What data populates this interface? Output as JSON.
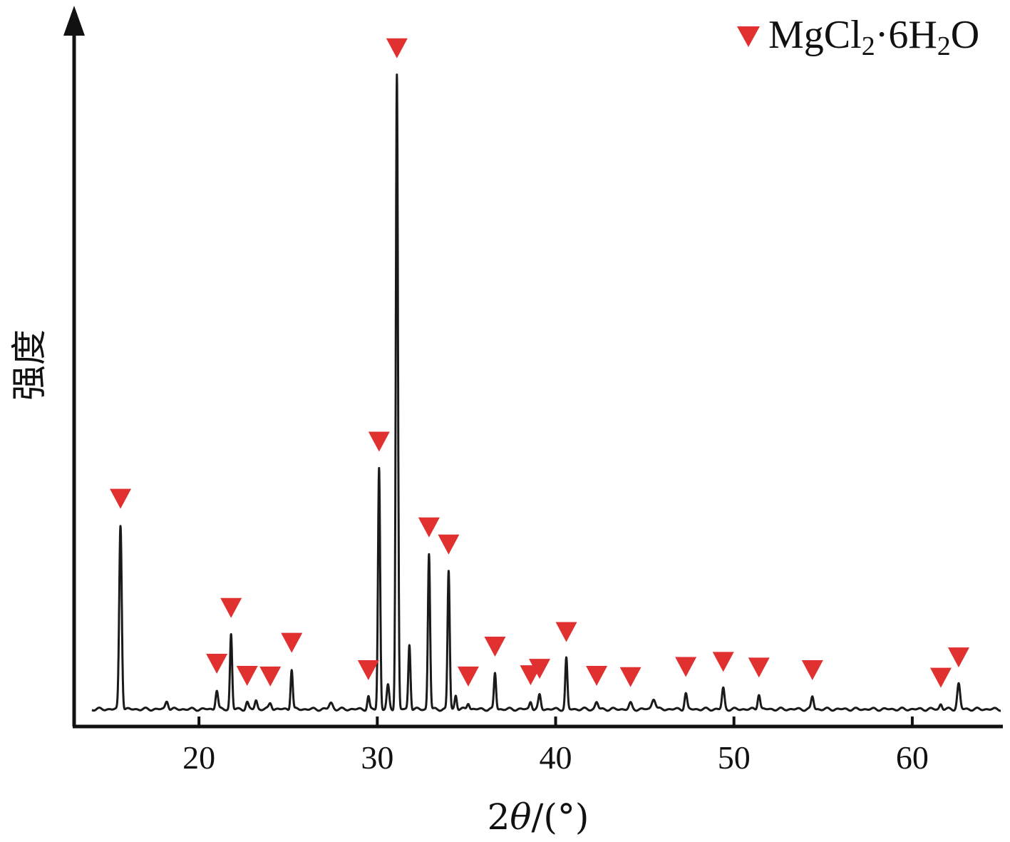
{
  "chart_data": {
    "type": "line",
    "xlabel": "2θ/(°)",
    "xlabel_prefix": "2",
    "xlabel_symbol": "θ",
    "xlabel_suffix": "/(°)",
    "ylabel": "强度",
    "xlim": [
      13,
      65
    ],
    "ylim": [
      0,
      100
    ],
    "xticks": [
      20,
      30,
      40,
      50,
      60
    ],
    "xtick_labels": [
      "20",
      "30",
      "40",
      "50",
      "60"
    ],
    "grid": false,
    "legend": {
      "position": "top-right",
      "entries": [
        {
          "label": "MgCl₂·6H₂O",
          "text_parts": [
            "MgCl",
            "2",
            "·6H",
            "2",
            "O"
          ],
          "marker": "down-triangle",
          "color": "#e03030"
        }
      ]
    },
    "line_color": "#1a1a1a",
    "baseline": 2.5,
    "peaks": [
      {
        "x": 15.6,
        "y": 29.0,
        "w": 0.07,
        "marked": true
      },
      {
        "x": 18.2,
        "y": 1.3,
        "w": 0.08,
        "marked": false
      },
      {
        "x": 21.0,
        "y": 3.0,
        "w": 0.07,
        "marked": true
      },
      {
        "x": 21.8,
        "y": 11.8,
        "w": 0.06,
        "marked": true
      },
      {
        "x": 22.7,
        "y": 1.1,
        "w": 0.07,
        "marked": true
      },
      {
        "x": 23.2,
        "y": 1.4,
        "w": 0.07,
        "marked": false
      },
      {
        "x": 24.0,
        "y": 1.0,
        "w": 0.08,
        "marked": true
      },
      {
        "x": 25.2,
        "y": 6.3,
        "w": 0.06,
        "marked": true
      },
      {
        "x": 27.4,
        "y": 1.0,
        "w": 0.1,
        "marked": false
      },
      {
        "x": 29.5,
        "y": 2.0,
        "w": 0.06,
        "marked": true
      },
      {
        "x": 30.1,
        "y": 38.0,
        "w": 0.06,
        "marked": true
      },
      {
        "x": 30.6,
        "y": 3.7,
        "w": 0.07,
        "marked": false
      },
      {
        "x": 31.1,
        "y": 100.0,
        "w": 0.06,
        "marked": true
      },
      {
        "x": 31.8,
        "y": 10.2,
        "w": 0.06,
        "marked": false
      },
      {
        "x": 32.9,
        "y": 24.5,
        "w": 0.06,
        "marked": true
      },
      {
        "x": 34.0,
        "y": 21.8,
        "w": 0.06,
        "marked": true
      },
      {
        "x": 34.4,
        "y": 2.2,
        "w": 0.06,
        "marked": false
      },
      {
        "x": 35.1,
        "y": 1.0,
        "w": 0.07,
        "marked": true
      },
      {
        "x": 36.6,
        "y": 5.7,
        "w": 0.06,
        "marked": true
      },
      {
        "x": 38.6,
        "y": 1.2,
        "w": 0.07,
        "marked": true
      },
      {
        "x": 39.1,
        "y": 2.2,
        "w": 0.07,
        "marked": true
      },
      {
        "x": 40.6,
        "y": 8.0,
        "w": 0.06,
        "marked": true
      },
      {
        "x": 42.3,
        "y": 1.1,
        "w": 0.08,
        "marked": true
      },
      {
        "x": 44.2,
        "y": 0.9,
        "w": 0.08,
        "marked": true
      },
      {
        "x": 45.5,
        "y": 1.7,
        "w": 0.1,
        "marked": false
      },
      {
        "x": 47.3,
        "y": 2.5,
        "w": 0.07,
        "marked": true
      },
      {
        "x": 49.4,
        "y": 3.3,
        "w": 0.07,
        "marked": true
      },
      {
        "x": 51.4,
        "y": 2.4,
        "w": 0.07,
        "marked": true
      },
      {
        "x": 54.4,
        "y": 2.0,
        "w": 0.07,
        "marked": true
      },
      {
        "x": 61.6,
        "y": 0.8,
        "w": 0.07,
        "marked": true
      },
      {
        "x": 62.6,
        "y": 4.0,
        "w": 0.08,
        "marked": true
      }
    ]
  }
}
